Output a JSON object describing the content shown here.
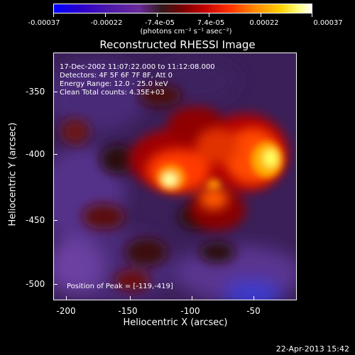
{
  "colorbar": {
    "labels": [
      "-0.00037",
      "-0.00022",
      "-7.4e-05",
      "7.4e-05",
      "0.00022",
      "0.00037"
    ],
    "units": "(photons cm⁻² s⁻¹ asec⁻²)"
  },
  "title": "Reconstructed RHESSI Image",
  "annotations": {
    "time": "17-Dec-2002 11:07:22.000 to 11:12:08.000",
    "detectors": "Detectors: 4F 5F 6F 7F 8F, Att 0",
    "energy": "Energy Range: 12.0 - 25.0 keV",
    "clean": "Clean     Total counts: 4.35E+03",
    "peak": "Position of Peak = [-119,-419]"
  },
  "axes": {
    "xlabel": "Heliocentric X (arcsec)",
    "ylabel": "Heliocentric Y (arcsec)",
    "xticks": [
      "-200",
      "-150",
      "-100",
      "-50"
    ],
    "yticks": [
      "-350",
      "-400",
      "-450",
      "-500"
    ]
  },
  "footer": "22-Apr-2013 15:42"
}
